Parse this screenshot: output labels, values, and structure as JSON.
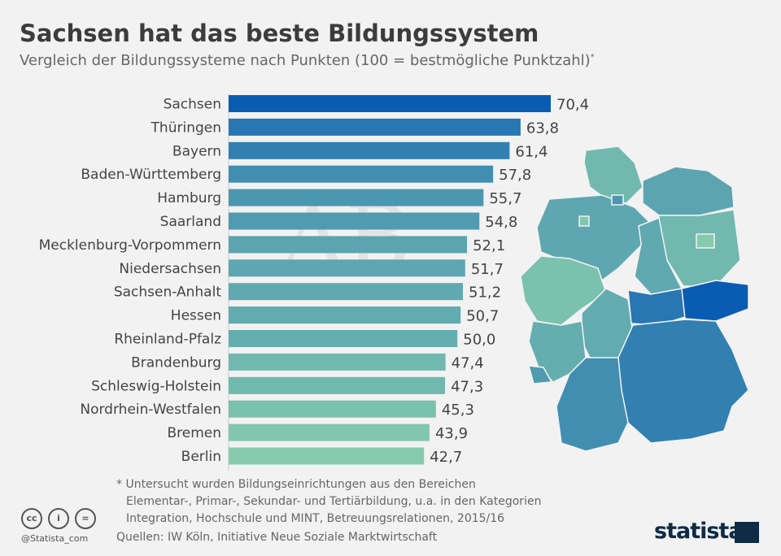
{
  "header": {
    "title": "Sachsen hat das beste Bildungssystem",
    "subtitle": "Vergleich der Bildungssysteme nach Punkten (100 = bestmögliche Punktzahl)",
    "subtitle_mark": "*"
  },
  "chart_data": {
    "type": "bar",
    "orientation": "horizontal",
    "categories": [
      "Sachsen",
      "Thüringen",
      "Bayern",
      "Baden-Württemberg",
      "Hamburg",
      "Saarland",
      "Mecklenburg-Vorpommern",
      "Niedersachsen",
      "Sachsen-Anhalt",
      "Hessen",
      "Rheinland-Pfalz",
      "Brandenburg",
      "Schleswig-Holstein",
      "Nordrhein-Westfalen",
      "Bremen",
      "Berlin"
    ],
    "values": [
      70.4,
      63.8,
      61.4,
      57.8,
      55.7,
      54.8,
      52.1,
      51.7,
      51.2,
      50.7,
      50.0,
      47.4,
      47.3,
      45.3,
      43.9,
      42.7
    ],
    "value_labels": [
      "70,4",
      "63,8",
      "61,4",
      "57,8",
      "55,7",
      "54,8",
      "52,1",
      "51,7",
      "51,2",
      "50,7",
      "50,0",
      "47,4",
      "47,3",
      "45,3",
      "43,9",
      "42,7"
    ],
    "xlim": [
      0,
      100
    ],
    "grid": false,
    "color_high": "#0a5cb3",
    "color_low": "#86cbae"
  },
  "footer": {
    "note_lines": [
      "* Untersucht wurden Bildungseinrichtungen aus den Bereichen",
      "Elementar-, Primar-, Sekundar- und Tertiärbildung, u.a. in den Kategorien",
      "Integration, Hochschule und MINT, Betreuungsrelationen, 2015/16"
    ],
    "sources": "Quellen: IW Köln, Initiative Neue Soziale Marktwirtschaft",
    "handle": "@Statista_com",
    "logo": "statista",
    "license_icons": [
      "cc",
      "i",
      "="
    ]
  }
}
